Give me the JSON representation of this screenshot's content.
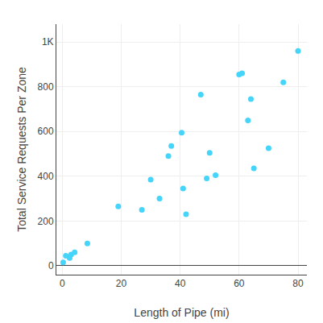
{
  "chart_data": {
    "type": "scatter",
    "xlabel": "Length of Pipe (mi)",
    "ylabel": "Total Service Requests Per Zone",
    "x": [
      0.3,
      1.2,
      2.5,
      3.0,
      4.2,
      8.5,
      19.0,
      27.0,
      30.0,
      33.0,
      36.0,
      37.0,
      40.5,
      41.0,
      42.0,
      47.0,
      49.0,
      50.0,
      52.0,
      60.0,
      61.0,
      63.0,
      64.0,
      65.0,
      70.0,
      75.0,
      80.0
    ],
    "values": [
      15,
      45,
      35,
      50,
      60,
      100,
      265,
      250,
      385,
      300,
      490,
      535,
      595,
      345,
      230,
      765,
      390,
      505,
      405,
      855,
      860,
      650,
      745,
      435,
      525,
      820,
      960
    ],
    "color": "#45D4FA",
    "xlim": [
      -2,
      83
    ],
    "ylim": [
      -40,
      1080
    ],
    "xticks": [
      0,
      20,
      40,
      60,
      80
    ],
    "yticks": [
      0,
      200,
      400,
      600,
      800,
      {
        "value": 1000,
        "label": "1K"
      }
    ],
    "grid": true
  }
}
